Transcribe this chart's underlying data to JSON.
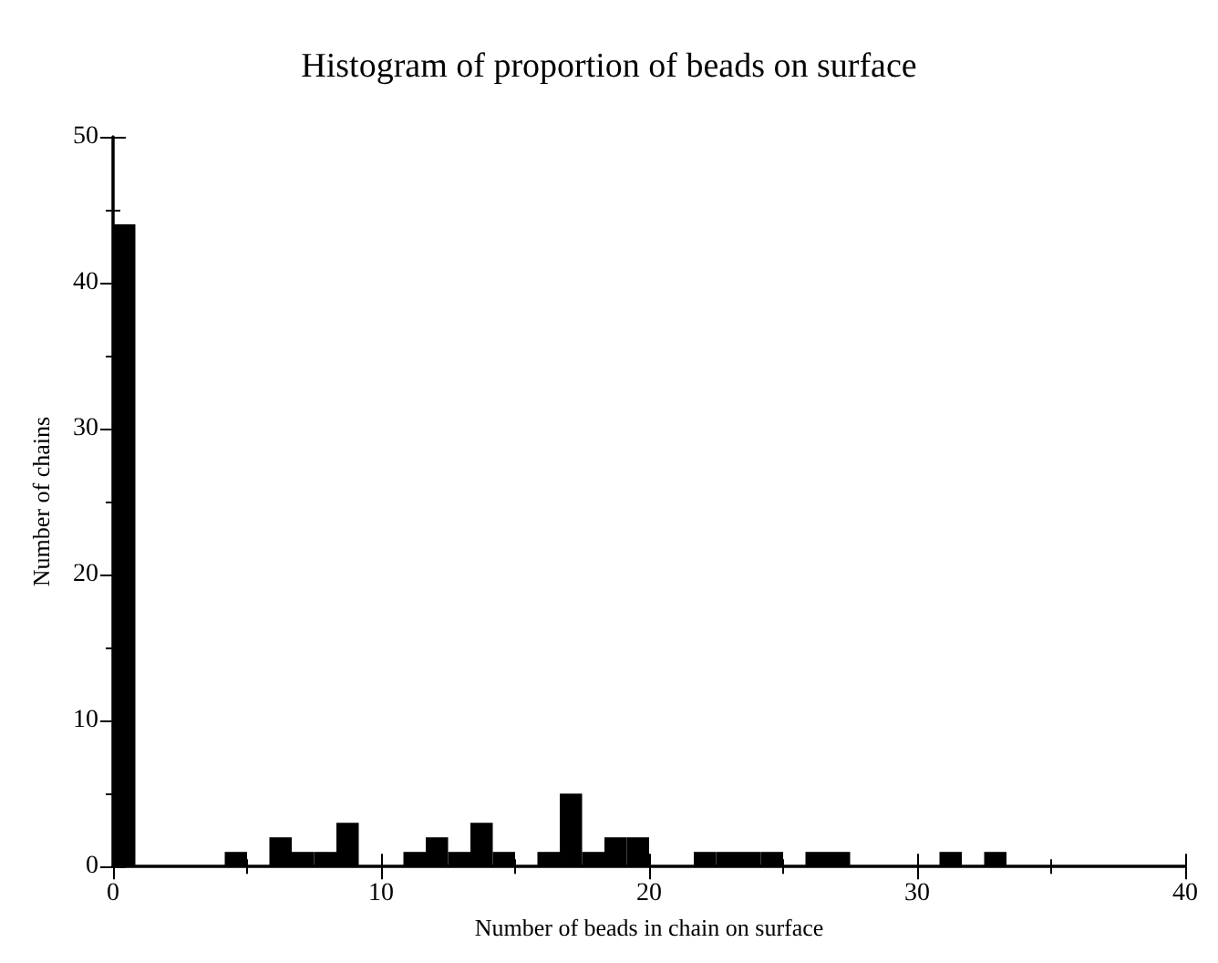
{
  "chart_data": {
    "type": "histogram",
    "title": "Histogram of proportion of beads on surface",
    "xlabel": "Number of beads in chain on surface",
    "ylabel": "Number of chains",
    "color": "#000000",
    "bins": [
      0,
      0.833,
      1.667,
      2.5,
      3.333,
      4.167,
      5,
      5.833,
      6.667,
      7.5,
      8.333,
      9.167,
      10,
      10.833,
      11.667,
      12.5,
      13.333,
      14.167,
      15,
      15.833,
      16.667,
      17.5,
      18.333,
      19.167,
      20,
      20.833,
      21.667,
      22.5,
      23.333,
      24.167,
      25,
      25.833,
      26.667,
      27.5,
      28.333,
      29.167,
      30,
      30.833,
      31.667,
      32.5,
      33.333,
      34.167,
      35,
      35.833,
      36.667,
      37.5,
      38.333,
      39.167,
      40
    ],
    "values": [
      44,
      0,
      0,
      0,
      0,
      1,
      0,
      2,
      1,
      1,
      3,
      0,
      0,
      1,
      2,
      1,
      3,
      1,
      0,
      1,
      5,
      1,
      2,
      2,
      0,
      0,
      1,
      1,
      1,
      1,
      0,
      1,
      1,
      0,
      0,
      0,
      0,
      1,
      0,
      1,
      0,
      0,
      0,
      0,
      0,
      0,
      0,
      0
    ],
    "xlim": [
      0,
      40
    ],
    "xticks": [
      0,
      10,
      20,
      30,
      40
    ],
    "ylim": [
      0,
      50
    ],
    "yticks": [
      0,
      10,
      20,
      30,
      40,
      50
    ],
    "grid": false
  }
}
